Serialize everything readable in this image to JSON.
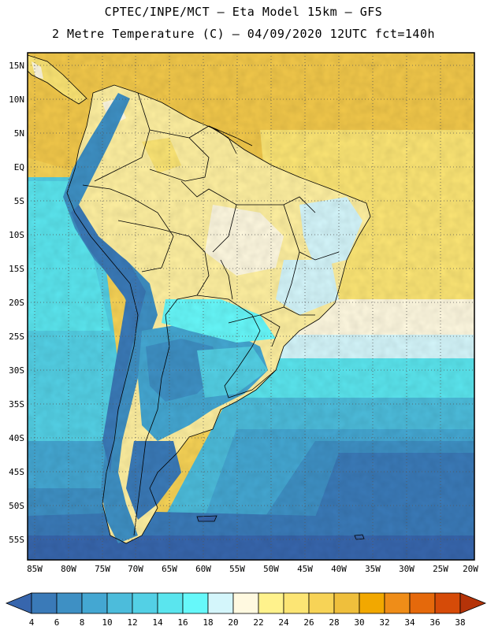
{
  "header": {
    "title_line1": "CPTEC/INPE/MCT –  Eta Model 15km – GFS",
    "title_line2": "2 Metre Temperature (C) – 04/09/2020 12UTC fct=140h"
  },
  "map": {
    "lat_labels": [
      "15N",
      "10N",
      "5N",
      "EQ",
      "5S",
      "10S",
      "15S",
      "20S",
      "25S",
      "30S",
      "35S",
      "40S",
      "45S",
      "50S",
      "55S"
    ],
    "lon_labels": [
      "85W",
      "80W",
      "75W",
      "70W",
      "65W",
      "60W",
      "55W",
      "50W",
      "45W",
      "40W",
      "35W",
      "30W",
      "25W",
      "20W"
    ],
    "lat_range": [
      17,
      -58
    ],
    "lon_range": [
      -86,
      -20
    ],
    "gridlines": "dotted"
  },
  "colorbar": {
    "labels": [
      "4",
      "6",
      "8",
      "10",
      "12",
      "14",
      "16",
      "18",
      "20",
      "22",
      "24",
      "26",
      "28",
      "30",
      "32",
      "34",
      "36",
      "38"
    ],
    "colors": [
      "#3766ad",
      "#3a7ab8",
      "#3e90c4",
      "#44a7d2",
      "#4cbcdb",
      "#53d0e5",
      "#5ae5ee",
      "#66f8fa",
      "#d4f6fb",
      "#fff9e0",
      "#fff28c",
      "#fce574",
      "#f7d356",
      "#efbf3c",
      "#f2a800",
      "#ef8d18",
      "#e5690b",
      "#d64b08",
      "#b53308"
    ]
  }
}
